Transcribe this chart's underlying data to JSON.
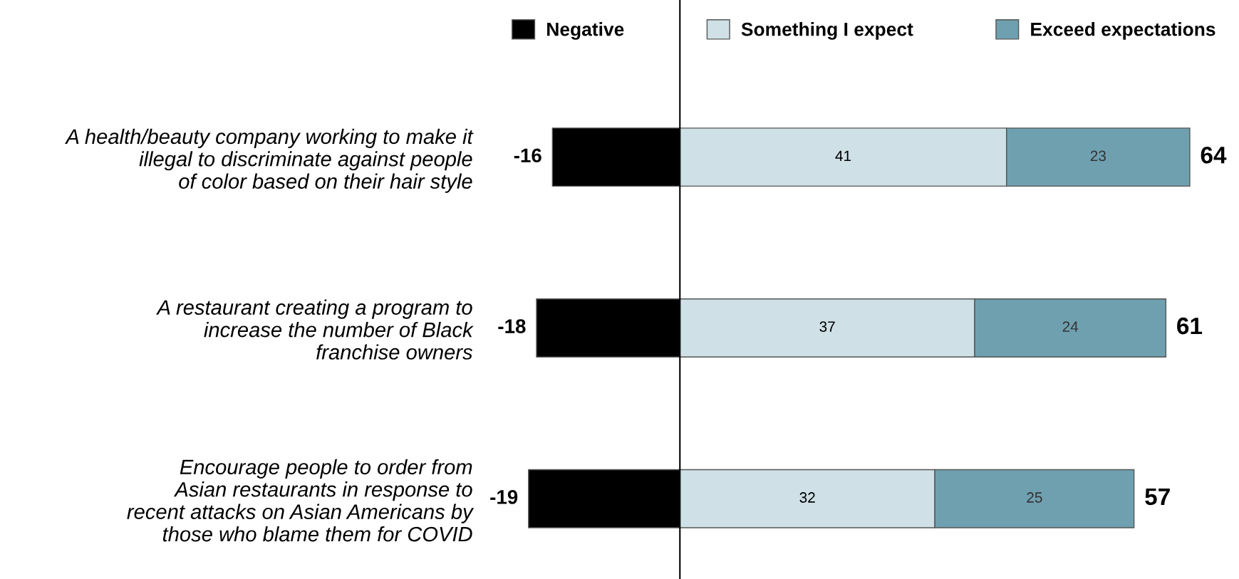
{
  "chart_data": {
    "type": "bar",
    "orientation": "horizontal",
    "stacked": true,
    "categories": [
      "A health/beauty company working to make it\nillegal to discriminate against people\nof color based on their hair style",
      "A restaurant creating a program to\nincrease the number of Black\nfranchise owners",
      "Encourage people to order from\nAsian restaurants in response to\nrecent attacks on Asian Americans by\nthose who blame them for COVID"
    ],
    "series": [
      {
        "name": "Negative",
        "color": "#000000",
        "values": [
          -16,
          -18,
          -19
        ]
      },
      {
        "name": "Something I expect",
        "color": "#cfe0e6",
        "values": [
          41,
          37,
          32
        ]
      },
      {
        "name": "Exceed expectations",
        "color": "#6fa0b0",
        "values": [
          23,
          24,
          25
        ]
      }
    ],
    "data_labels": true,
    "annotations": [
      {
        "text": "64",
        "x": 64,
        "y": "A health/beauty company working to make it\nillegal to discriminate against people\nof color based on their hair style"
      },
      {
        "text": "61",
        "x": 61,
        "y": "A restaurant creating a program to\nincrease the number of Black\nfranchise owners"
      },
      {
        "text": "57",
        "x": 57,
        "y": "Encourage people to order from\nAsian restaurants in response to\nrecent attacks on Asian Americans by\nthose who blame them for COVID"
      }
    ],
    "ref_lines": [
      {
        "axis": "x",
        "value": 0,
        "color": "#000000"
      }
    ],
    "legend": "top"
  }
}
